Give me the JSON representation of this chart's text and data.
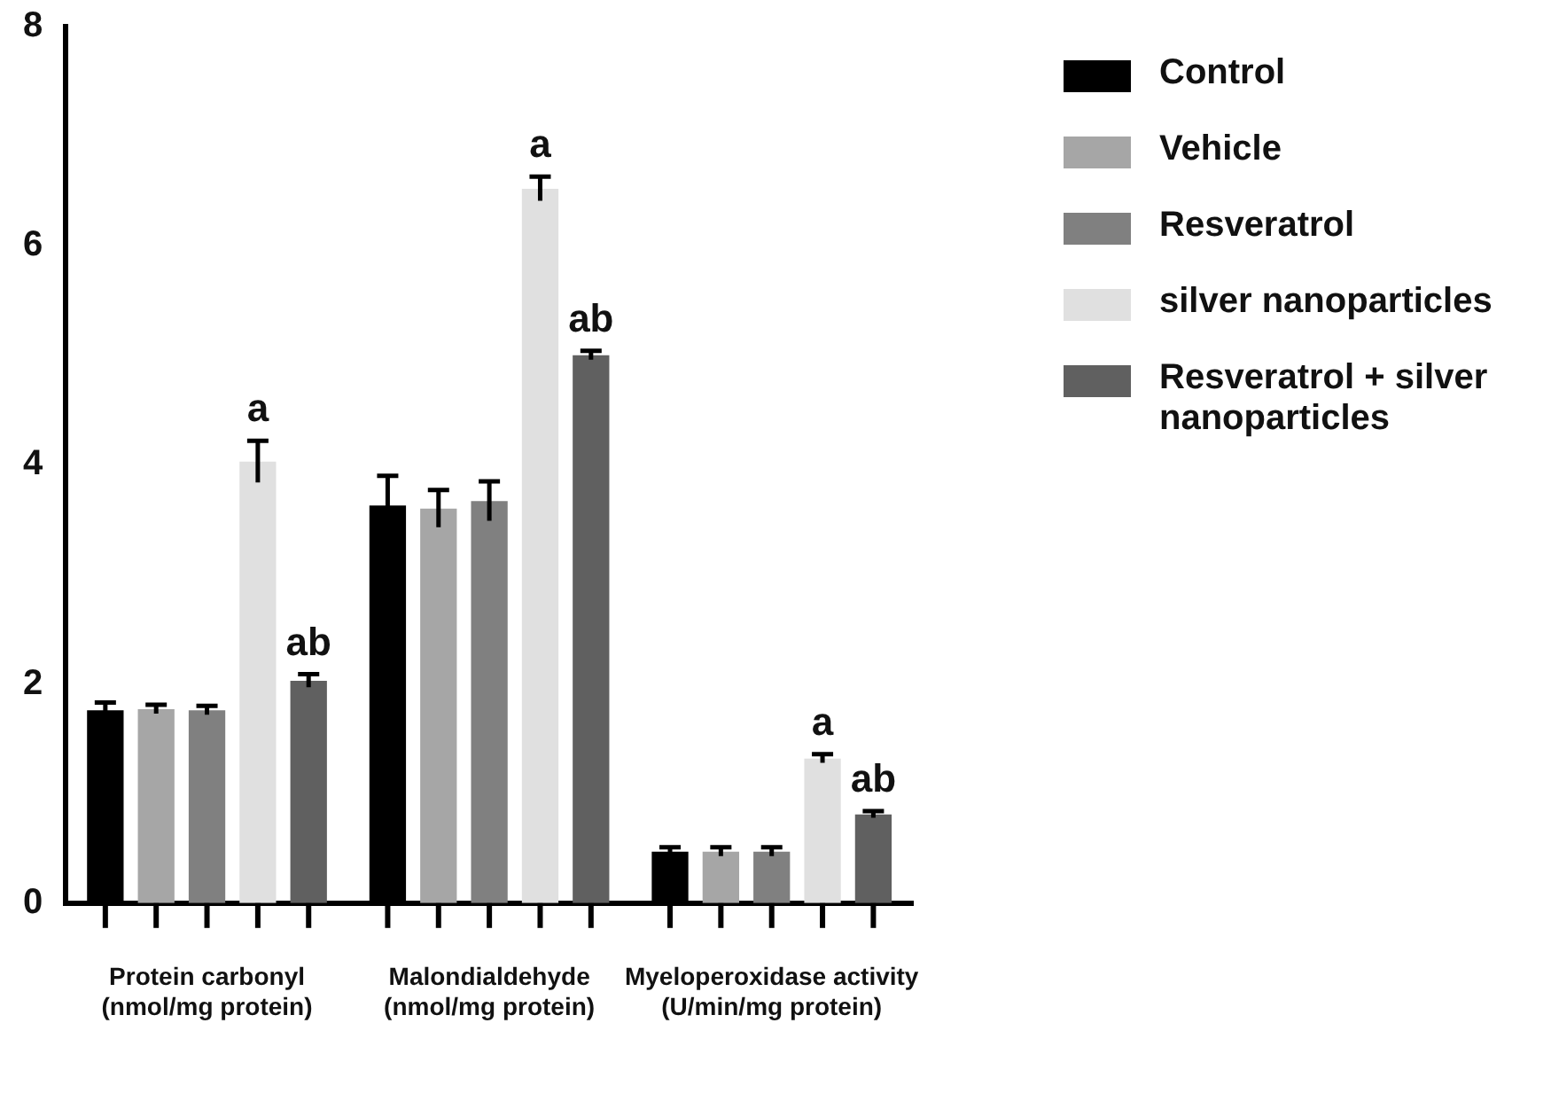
{
  "chart_data": {
    "type": "bar",
    "categories": [
      "Protein carbonyl\n(nmol/mg protein)",
      "Malondialdehyde\n(nmol/mg protein)",
      "Myeloperoxidase activity\n(U/min/mg protein)"
    ],
    "series": [
      {
        "name": "Control",
        "color": "#000000",
        "values": [
          1.76,
          3.63,
          0.47
        ],
        "errors": [
          0.07,
          0.27,
          0.04
        ]
      },
      {
        "name": "Vehicle",
        "color": "#a6a6a6",
        "values": [
          1.77,
          3.6,
          0.47
        ],
        "errors": [
          0.04,
          0.17,
          0.04
        ]
      },
      {
        "name": "Resveratrol",
        "color": "#808080",
        "values": [
          1.76,
          3.67,
          0.47
        ],
        "errors": [
          0.04,
          0.18,
          0.04
        ]
      },
      {
        "name": "silver nanoparticles",
        "color": "#e0e0e0",
        "values": [
          4.03,
          6.52,
          1.32
        ],
        "errors": [
          0.19,
          0.11,
          0.04
        ],
        "value_labels": [
          "a",
          "a",
          "a"
        ]
      },
      {
        "name": "Resveratrol + silver nanoparticles",
        "color": "#606060",
        "values": [
          2.03,
          5.0,
          0.81
        ],
        "errors": [
          0.06,
          0.04,
          0.03
        ],
        "value_labels": [
          "ab",
          "ab",
          "ab"
        ]
      }
    ],
    "ylim": [
      0,
      8
    ],
    "yticks": [
      0,
      2,
      4,
      6,
      8
    ],
    "grid": false,
    "legend": "right"
  }
}
